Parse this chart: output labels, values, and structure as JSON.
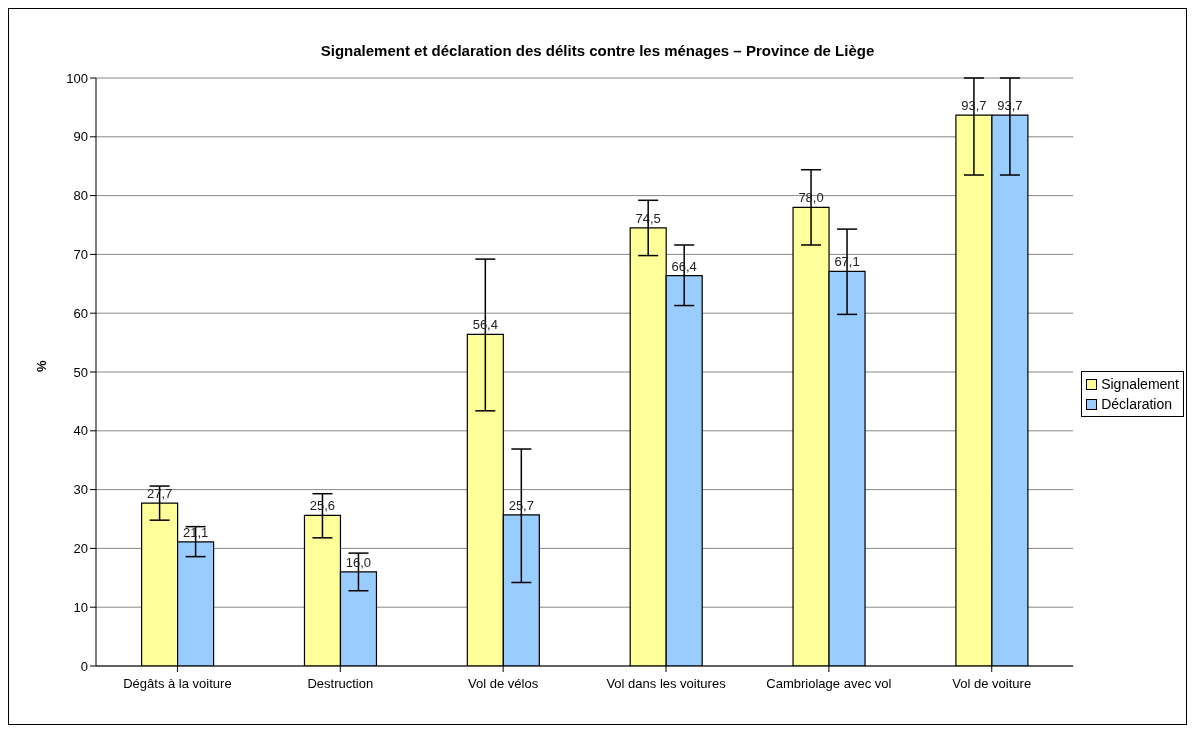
{
  "chart_data": {
    "type": "bar",
    "title": "Signalement et déclaration des délits contre les ménages – Province de Liège",
    "ylabel": "%",
    "categories": [
      "Dégâts à la voiture",
      "Destruction",
      "Vol de vélos",
      "Vol dans les voitures",
      "Cambriolage avec vol",
      "Vol de voiture"
    ],
    "series": [
      {
        "name": "Signalement",
        "color": "#ffff99",
        "values": [
          27.7,
          25.6,
          56.4,
          74.5,
          78.0,
          93.7
        ],
        "value_labels": [
          "27,7",
          "25,6",
          "56,4",
          "74,5",
          "78,0",
          "93,7"
        ],
        "errors": [
          [
            24.8,
            30.6
          ],
          [
            21.8,
            29.3
          ],
          [
            43.4,
            69.2
          ],
          [
            69.8,
            79.2
          ],
          [
            71.6,
            84.4
          ],
          [
            83.5,
            100
          ]
        ]
      },
      {
        "name": "Déclaration",
        "color": "#99ccff",
        "values": [
          21.1,
          16.0,
          25.7,
          66.4,
          67.1,
          93.7
        ],
        "value_labels": [
          "21,1",
          "16,0",
          "25,7",
          "66,4",
          "67,1",
          "93,7"
        ],
        "errors": [
          [
            18.6,
            23.7
          ],
          [
            12.8,
            19.2
          ],
          [
            14.2,
            36.9
          ],
          [
            61.3,
            71.6
          ],
          [
            59.8,
            74.3
          ],
          [
            83.5,
            100
          ]
        ]
      }
    ],
    "ylim": [
      0,
      100
    ],
    "yticks": [
      0,
      10,
      20,
      30,
      40,
      50,
      60,
      70,
      80,
      90,
      100
    ],
    "grid": "y",
    "legend": "right"
  }
}
